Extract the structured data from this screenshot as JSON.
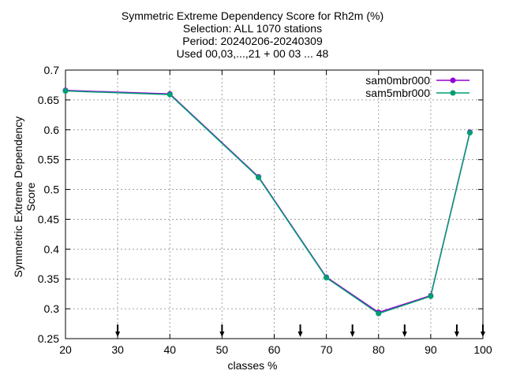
{
  "chart_data": {
    "type": "line",
    "title": [
      "Symmetric Extreme Dependency Score  for Rh2m (%)",
      "Selection: ALL   1070 stations",
      "Period: 20240206-20240309",
      "Used 00,03,...,21 + 00 03 ... 48"
    ],
    "xlabel": "classes %",
    "ylabel": "Symmetric Extreme Dependency Score",
    "xlim": [
      20,
      100
    ],
    "ylim": [
      0.25,
      0.7
    ],
    "xticks": [
      20,
      30,
      40,
      50,
      60,
      70,
      80,
      90,
      100
    ],
    "yticks": [
      0.25,
      0.3,
      0.35,
      0.4,
      0.45,
      0.5,
      0.55,
      0.6,
      0.65,
      0.7
    ],
    "grid": true,
    "legend_position": "top-right",
    "series": [
      {
        "name": "sam0mbr000",
        "color": "#9400d3",
        "x": [
          20,
          40,
          57,
          70,
          80,
          90,
          97.5
        ],
        "y": [
          0.666,
          0.66,
          0.521,
          0.353,
          0.294,
          0.322,
          0.596
        ]
      },
      {
        "name": "sam5mbr000",
        "color": "#009e73",
        "x": [
          20,
          40,
          57,
          70,
          80,
          90,
          97.5
        ],
        "y": [
          0.665,
          0.659,
          0.52,
          0.352,
          0.292,
          0.321,
          0.595
        ]
      }
    ],
    "threshold_markers_x": [
      30,
      50,
      65,
      75,
      85,
      95,
      100
    ]
  }
}
